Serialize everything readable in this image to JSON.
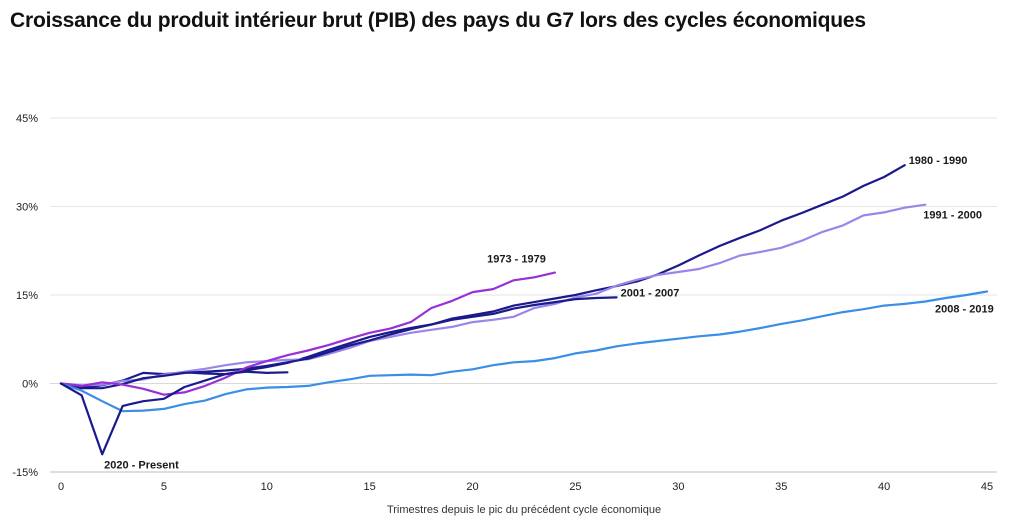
{
  "title": "Croissance du produit intérieur brut (PIB) des pays du G7 lors des cycles économiques",
  "chart_data": {
    "type": "line",
    "title": "Croissance du produit intérieur brut (PIB) des pays du G7 lors des cycles économiques",
    "xlabel": "Trimestres depuis le pic du précédent cycle économique",
    "ylabel": "",
    "xlim": [
      0,
      45
    ],
    "ylim": [
      -15,
      45
    ],
    "xticks": [
      0,
      5,
      10,
      15,
      20,
      25,
      30,
      35,
      40,
      45
    ],
    "yticks": [
      -15,
      0,
      15,
      30,
      45
    ],
    "ytick_labels": [
      "-15%",
      "0%",
      "15%",
      "30%",
      "45%"
    ],
    "grid": "horizontal",
    "series": [
      {
        "name": "1980 - 1990",
        "color": "#1a1a8c",
        "values": [
          0,
          -0.7,
          -0.3,
          0.5,
          1.8,
          1.6,
          1.9,
          1.7,
          1.6,
          2.2,
          2.8,
          3.5,
          4.5,
          5.7,
          6.8,
          7.9,
          8.7,
          9.4,
          10.0,
          11.0,
          11.6,
          12.2,
          13.2,
          13.8,
          14.4,
          15.0,
          15.8,
          16.5,
          17.3,
          18.5,
          20.0,
          21.7,
          23.3,
          24.7,
          26.0,
          27.6,
          28.9,
          30.3,
          31.7,
          33.5,
          35.0,
          37.0
        ]
      },
      {
        "name": "1991 - 2000",
        "color": "#9a85ea",
        "values": [
          0,
          -0.3,
          -0.2,
          0.4,
          0.7,
          1.5,
          2.0,
          2.5,
          3.1,
          3.6,
          3.8,
          4.0,
          4.1,
          5.0,
          6.0,
          7.2,
          7.9,
          8.6,
          9.1,
          9.6,
          10.4,
          10.8,
          11.3,
          12.8,
          13.5,
          14.6,
          15.2,
          16.6,
          17.6,
          18.4,
          18.9,
          19.4,
          20.4,
          21.7,
          22.3,
          23.0,
          24.2,
          25.7,
          26.8,
          28.5,
          29.0,
          29.8,
          30.3
        ]
      },
      {
        "name": "2001 - 2007",
        "color": "#1a1a8c",
        "values": [
          0,
          -0.8,
          -0.8,
          -0.1,
          0.9,
          1.3,
          1.8,
          2.0,
          2.2,
          2.5,
          3.0,
          3.6,
          4.2,
          5.3,
          6.4,
          7.3,
          8.3,
          9.2,
          10.0,
          10.8,
          11.3,
          11.8,
          12.7,
          13.3,
          13.8,
          14.3,
          14.5,
          14.6
        ]
      },
      {
        "name": "1973 - 1979",
        "color": "#9a2fd6",
        "values": [
          0,
          -0.4,
          0.2,
          -0.2,
          -0.9,
          -1.9,
          -1.5,
          -0.4,
          1.0,
          2.7,
          3.8,
          4.8,
          5.6,
          6.5,
          7.6,
          8.6,
          9.3,
          10.4,
          12.8,
          14.0,
          15.5,
          16.0,
          17.5,
          18.0,
          18.8
        ]
      },
      {
        "name": "2008 - 2019",
        "color": "#3a8ee6",
        "values": [
          0,
          -1.2,
          -3.0,
          -4.7,
          -4.6,
          -4.3,
          -3.5,
          -2.9,
          -1.8,
          -1.0,
          -0.7,
          -0.6,
          -0.4,
          0.2,
          0.7,
          1.3,
          1.4,
          1.5,
          1.4,
          2.0,
          2.4,
          3.1,
          3.6,
          3.8,
          4.3,
          5.1,
          5.6,
          6.3,
          6.8,
          7.2,
          7.6,
          8.0,
          8.3,
          8.8,
          9.4,
          10.1,
          10.7,
          11.4,
          12.1,
          12.6,
          13.2,
          13.5,
          13.9,
          14.5,
          15.0,
          15.6
        ]
      },
      {
        "name": "2020 - Present",
        "color": "#1a1a8c",
        "values": [
          0,
          -2.0,
          -12.0,
          -3.8,
          -3.0,
          -2.6,
          -0.6,
          0.5,
          1.6,
          2.0,
          1.8,
          1.9
        ]
      }
    ]
  },
  "series_label_anchors": [
    {
      "series": 0,
      "at_index": 41,
      "side": "right"
    },
    {
      "series": 1,
      "at_index": 42,
      "side": "below-right"
    },
    {
      "series": 2,
      "at_index": 27,
      "side": "right"
    },
    {
      "series": 3,
      "at_index": 24,
      "side": "above-left"
    },
    {
      "series": 4,
      "at_index": 45,
      "side": "below-left"
    },
    {
      "series": 5,
      "at_index": 2,
      "side": "below"
    }
  ]
}
